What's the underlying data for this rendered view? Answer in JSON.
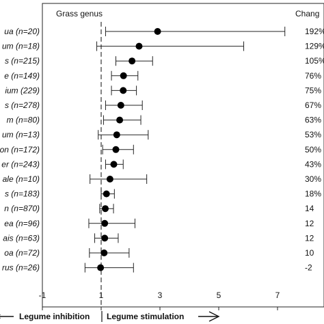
{
  "chart_data": {
    "type": "forest",
    "header_left": "Grass genus",
    "header_right": "Chang",
    "xlim": [
      -1,
      8
    ],
    "xticks": [
      -1,
      1,
      3,
      5,
      7
    ],
    "reference_line": 1,
    "rows": [
      {
        "label": "ua (n=20)",
        "mean": 2.92,
        "lo": 1.15,
        "hi": 7.25,
        "change": "192%"
      },
      {
        "label": "um (n=18)",
        "mean": 2.29,
        "lo": 0.85,
        "hi": 5.85,
        "change": "129%"
      },
      {
        "label": "s (n=215)",
        "mean": 2.05,
        "lo": 1.5,
        "hi": 2.75,
        "change": "105%"
      },
      {
        "label": "e (n=149)",
        "mean": 1.76,
        "lo": 1.35,
        "hi": 2.25,
        "change": "76%"
      },
      {
        "label": "ium (229)",
        "mean": 1.75,
        "lo": 1.35,
        "hi": 2.2,
        "change": "75%"
      },
      {
        "label": "s (n=278)",
        "mean": 1.67,
        "lo": 1.15,
        "hi": 2.4,
        "change": "67%"
      },
      {
        "label": "m (n=80)",
        "mean": 1.63,
        "lo": 1.08,
        "hi": 2.35,
        "change": "63%"
      },
      {
        "label": "um (n=13)",
        "mean": 1.53,
        "lo": 0.9,
        "hi": 2.6,
        "change": "53%"
      },
      {
        "label": "on (n=172)",
        "mean": 1.5,
        "lo": 1.05,
        "hi": 2.1,
        "change": "50%"
      },
      {
        "label": "er (n=243)",
        "mean": 1.43,
        "lo": 1.15,
        "hi": 1.75,
        "change": "43%"
      },
      {
        "label": "ale (n=10)",
        "mean": 1.3,
        "lo": 0.62,
        "hi": 2.55,
        "change": "30%"
      },
      {
        "label": "s (n=183)",
        "mean": 1.18,
        "lo": 1.0,
        "hi": 1.45,
        "change": "18%"
      },
      {
        "label": "n (n=870)",
        "mean": 1.14,
        "lo": 0.95,
        "hi": 1.42,
        "change": "14"
      },
      {
        "label": "ea (n=96)",
        "mean": 1.12,
        "lo": 0.58,
        "hi": 2.15,
        "change": "12"
      },
      {
        "label": "ais (n=63)",
        "mean": 1.12,
        "lo": 0.78,
        "hi": 1.58,
        "change": "12"
      },
      {
        "label": "oa (n=72)",
        "mean": 1.1,
        "lo": 0.6,
        "hi": 1.95,
        "change": "10"
      },
      {
        "label": "rus (n=26)",
        "mean": 0.98,
        "lo": 0.45,
        "hi": 2.1,
        "change": "-2"
      }
    ],
    "arrow_left_label": "Legume inhibition",
    "arrow_right_label": "Legume stimulation"
  }
}
